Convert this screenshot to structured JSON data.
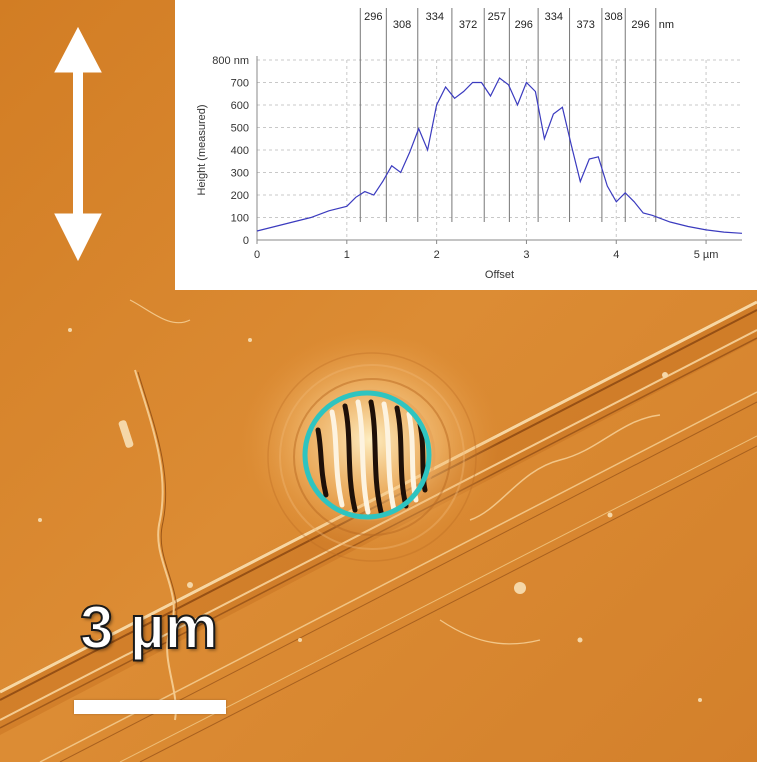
{
  "figure": {
    "scale_bar": {
      "label": "3 µm"
    },
    "arrow": {
      "icon": "double-arrow-vertical-icon"
    },
    "marker_circle": {
      "color": "#2ec4c0"
    },
    "background_color": "#d98a2e"
  },
  "chart_data": {
    "type": "line",
    "xlabel": "Offset",
    "ylabel": "Height (measured)",
    "xlim": [
      0,
      5.4
    ],
    "ylim": [
      0,
      800
    ],
    "x_ticks": [
      "0",
      "1",
      "2",
      "3",
      "4",
      "5 µm"
    ],
    "x_tick_values": [
      0,
      1,
      2,
      3,
      4,
      5
    ],
    "y_ticks": [
      "0",
      "100",
      "200",
      "300",
      "400",
      "500",
      "600",
      "700",
      "800 nm"
    ],
    "y_tick_values": [
      0,
      100,
      200,
      300,
      400,
      500,
      600,
      700,
      800
    ],
    "grid": true,
    "line_color": "#3b3bbf",
    "series": [
      {
        "x": [
          0,
          0.2,
          0.4,
          0.6,
          0.8,
          1.0,
          1.1,
          1.2,
          1.3,
          1.4,
          1.5,
          1.6,
          1.7,
          1.8,
          1.9,
          2.0,
          2.1,
          2.2,
          2.3,
          2.4,
          2.5,
          2.6,
          2.7,
          2.8,
          2.9,
          3.0,
          3.1,
          3.2,
          3.3,
          3.4,
          3.5,
          3.6,
          3.7,
          3.8,
          3.9,
          4.0,
          4.1,
          4.2,
          4.3,
          4.4,
          4.6,
          4.8,
          5.0,
          5.2,
          5.4
        ],
        "y": [
          40,
          60,
          80,
          100,
          130,
          150,
          190,
          215,
          200,
          260,
          330,
          300,
          390,
          495,
          400,
          600,
          680,
          630,
          660,
          700,
          700,
          640,
          720,
          690,
          600,
          700,
          660,
          450,
          560,
          590,
          420,
          260,
          360,
          370,
          240,
          170,
          210,
          170,
          120,
          110,
          80,
          60,
          45,
          35,
          30
        ]
      }
    ],
    "annotations": {
      "labels": [
        "296",
        "308",
        "334",
        "372",
        "257",
        "296",
        "334",
        "373",
        "308",
        "296"
      ],
      "unit": "nm",
      "marker_x": [
        1.15,
        1.44,
        1.79,
        2.17,
        2.53,
        2.81,
        3.13,
        3.48,
        3.84,
        4.1,
        4.44
      ]
    }
  }
}
